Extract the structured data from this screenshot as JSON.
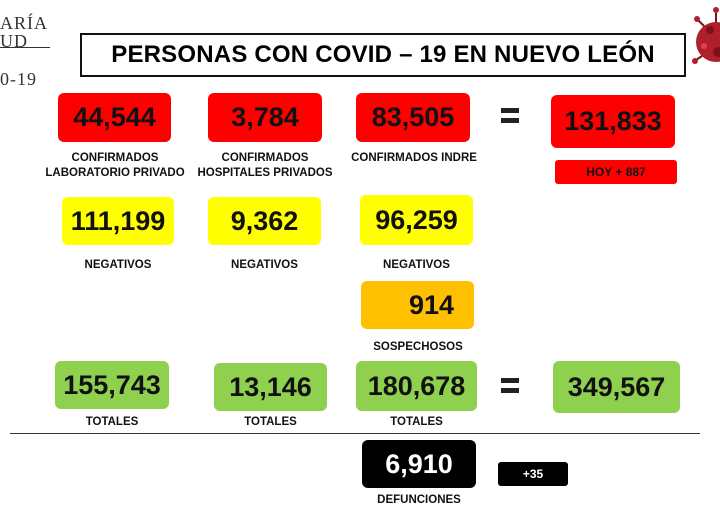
{
  "logo": {
    "line1": "ARÍA",
    "line2": "UD",
    "line3": "0-19"
  },
  "title": "PERSONAS CON COVID – 19 EN NUEVO LEÓN",
  "row1": [
    {
      "value": "44,544",
      "label1": "CONFIRMADOS",
      "label2": "LABORATORIO PRIVADO"
    },
    {
      "value": "3,784",
      "label1": "CONFIRMADOS",
      "label2": "HOSPITALES PRIVADOS"
    },
    {
      "value": "83,505",
      "label1": "CONFIRMADOS INDRE",
      "label2": ""
    }
  ],
  "row1_total": {
    "value": "131,833",
    "today": "HOY + 887"
  },
  "row2": [
    {
      "value": "111,199",
      "label": "NEGATIVOS"
    },
    {
      "value": "9,362",
      "label": "NEGATIVOS"
    },
    {
      "value": "96,259",
      "label": "NEGATIVOS"
    }
  ],
  "suspects": {
    "value": "914",
    "label": "SOSPECHOSOS"
  },
  "row3": [
    {
      "value": "155,743",
      "label": "TOTALES"
    },
    {
      "value": "13,146",
      "label": "TOTALES"
    },
    {
      "value": "180,678",
      "label": "TOTALES"
    }
  ],
  "grand_total": {
    "value": "349,567"
  },
  "deaths": {
    "value": "6,910",
    "label": "DEFUNCIONES",
    "delta": "+35"
  },
  "colors": {
    "confirmed": "#ff0000",
    "negative": "#ffff00",
    "suspect": "#ffc000",
    "total": "#8fd14f",
    "deaths": "#000000"
  }
}
